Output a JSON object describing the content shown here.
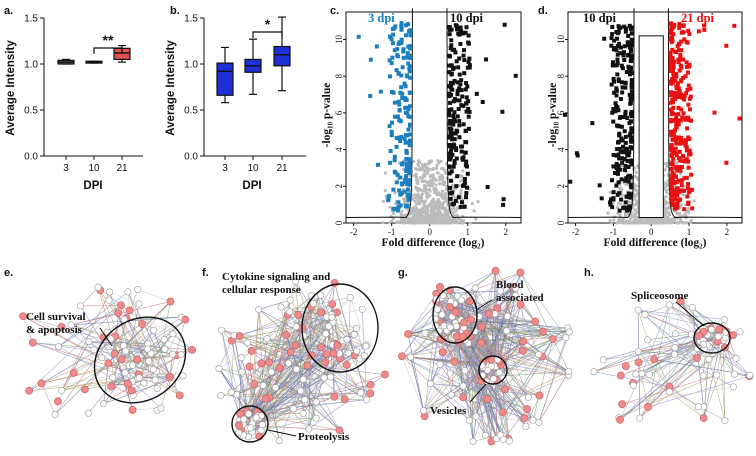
{
  "chart_data": [
    {
      "panel": "a.",
      "type": "box",
      "xlabel": "DPI",
      "ylabel": "Average Intensity",
      "categories": [
        "3",
        "10",
        "21"
      ],
      "ylim": [
        0,
        1.5
      ],
      "yticks": [
        "0.0",
        "0.5",
        "1.0",
        "1.5"
      ],
      "boxes": [
        {
          "min": 1.0,
          "q1": 1.0,
          "median": 1.02,
          "q3": 1.04,
          "max": 1.05,
          "color": "#5a6a7a"
        },
        {
          "min": 1.01,
          "q1": 1.01,
          "median": 1.02,
          "q3": 1.03,
          "max": 1.03,
          "color": "#5a6a7a"
        },
        {
          "min": 1.02,
          "q1": 1.05,
          "median": 1.12,
          "q3": 1.17,
          "max": 1.2,
          "color": "#e05050"
        }
      ],
      "significance": {
        "from": 1,
        "to": 2,
        "label": "**"
      }
    },
    {
      "panel": "b.",
      "type": "box",
      "xlabel": "DPI",
      "ylabel": "Average Intensity",
      "categories": [
        "3",
        "10",
        "21"
      ],
      "ylim": [
        0,
        1.5
      ],
      "yticks": [
        "0.0",
        "0.5",
        "1.0",
        "1.5"
      ],
      "boxes": [
        {
          "min": 0.58,
          "q1": 0.66,
          "median": 0.92,
          "q3": 1.01,
          "max": 1.18,
          "color": "#1f2fd8"
        },
        {
          "min": 0.67,
          "q1": 0.91,
          "median": 0.98,
          "q3": 1.05,
          "max": 1.27,
          "color": "#1f2fd8"
        },
        {
          "min": 0.71,
          "q1": 0.98,
          "median": 1.1,
          "q3": 1.19,
          "max": 1.51,
          "color": "#1f2fd8"
        }
      ],
      "significance": {
        "from": 1,
        "to": 2,
        "label": "*"
      }
    },
    {
      "panel": "c.",
      "type": "scatter",
      "xlabel": "Fold difference (log₂)",
      "ylabel": "-log₁₀ p-value",
      "xlim": [
        -2.2,
        2.4
      ],
      "ylim": [
        0,
        11.5
      ],
      "xticks": [
        "-2",
        "-1",
        "0",
        "1",
        "2"
      ],
      "yticks": [
        "0",
        "2",
        "4",
        "6",
        "8",
        "10"
      ],
      "left_label": "3 dpi",
      "right_label": "10 dpi",
      "left_color": "#1a7fc0",
      "right_color": "#111111",
      "gray_color": "#bbbbbb"
    },
    {
      "panel": "d.",
      "type": "scatter",
      "xlabel": "Fold difference (log₂)",
      "ylabel": "-log₁₀ p-value",
      "xlim": [
        -2.2,
        2.4
      ],
      "ylim": [
        0,
        11.5
      ],
      "xticks": [
        "-2",
        "-1",
        "0",
        "1",
        "2"
      ],
      "yticks": [
        "0",
        "2",
        "4",
        "6",
        "8",
        "10"
      ],
      "left_label": "10 dpi",
      "right_label": "21 dpi",
      "left_color": "#111111",
      "right_color": "#e81010",
      "gray_color": "#bbbbbb"
    }
  ],
  "networks": [
    {
      "panel": "e.",
      "labels": [
        "Cell survival",
        "& apoptosis"
      ]
    },
    {
      "panel": "f.",
      "labels": [
        "Cytokine signaling and",
        "cellular response",
        "Proteolysis"
      ]
    },
    {
      "panel": "g.",
      "labels": [
        "Blood",
        "associated",
        "Vesicles"
      ]
    },
    {
      "panel": "h.",
      "labels": [
        "Spliceosome"
      ]
    }
  ]
}
